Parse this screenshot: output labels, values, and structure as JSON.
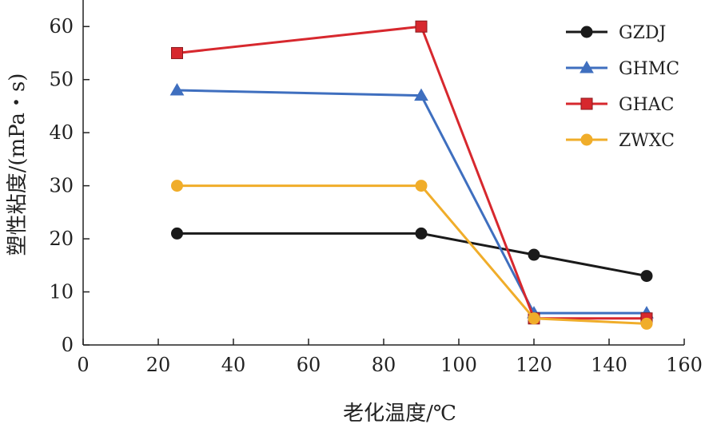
{
  "chart_data": {
    "type": "line",
    "xlabel": "老化温度/℃",
    "ylabel": "塑性粘度/(mPa・s)",
    "xlim": [
      0,
      160
    ],
    "ylim": [
      0,
      65
    ],
    "x_ticks": [
      0,
      20,
      40,
      60,
      80,
      100,
      120,
      140,
      160
    ],
    "y_ticks": [
      0,
      10,
      20,
      30,
      40,
      50,
      60
    ],
    "grid": false,
    "legend_position": "top-right",
    "x": [
      25,
      90,
      120,
      150
    ],
    "series": [
      {
        "name": "GZDJ",
        "color": "#1a1a1a",
        "marker": "circle",
        "values": [
          21,
          21,
          17,
          13
        ]
      },
      {
        "name": "GHMC",
        "color": "#3f6fbf",
        "marker": "triangle",
        "values": [
          48,
          47,
          6,
          6
        ]
      },
      {
        "name": "GHAC",
        "color": "#d7282e",
        "marker": "square",
        "values": [
          55,
          60,
          5,
          5
        ]
      },
      {
        "name": "ZWXC",
        "color": "#f0ad2a",
        "marker": "circle",
        "values": [
          30,
          30,
          5,
          4
        ]
      }
    ]
  }
}
